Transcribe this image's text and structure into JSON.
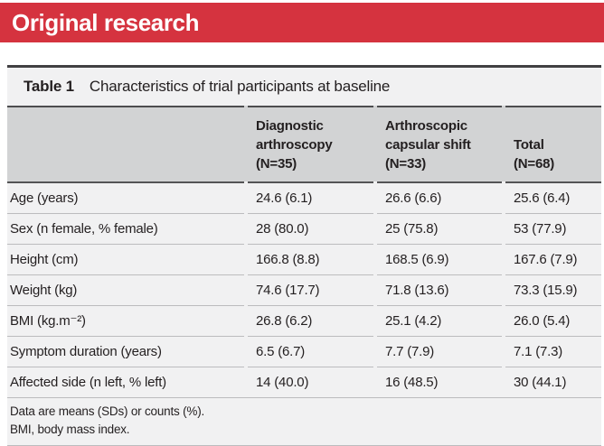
{
  "banner": {
    "title": "Original research",
    "background_color": "#d5333f"
  },
  "table": {
    "title_label": "Table 1",
    "title_text": "Characteristics of trial participants at baseline",
    "columns": [
      "Diagnostic\narthroscopy\n(N=35)",
      "Arthroscopic\ncapsular shift\n(N=33)",
      "Total\n(N=68)"
    ],
    "rows": [
      {
        "label": "Age (years)",
        "values": [
          "24.6 (6.1)",
          "26.6 (6.6)",
          "25.6 (6.4)"
        ]
      },
      {
        "label": "Sex (n female, % female)",
        "values": [
          "28 (80.0)",
          "25 (75.8)",
          "53 (77.9)"
        ]
      },
      {
        "label": "Height (cm)",
        "values": [
          "166.8 (8.8)",
          "168.5 (6.9)",
          "167.6 (7.9)"
        ]
      },
      {
        "label": "Weight (kg)",
        "values": [
          "74.6 (17.7)",
          "71.8 (13.6)",
          "73.3 (15.9)"
        ]
      },
      {
        "label": "BMI (kg.m⁻²)",
        "values": [
          "26.8 (6.2)",
          "25.1 (4.2)",
          "26.0 (5.4)"
        ]
      },
      {
        "label": "Symptom duration (years)",
        "values": [
          "6.5 (6.7)",
          "7.7 (7.9)",
          "7.1 (7.3)"
        ]
      },
      {
        "label": "Affected side (n left, % left)",
        "values": [
          "14 (40.0)",
          "16 (48.5)",
          "30 (44.1)"
        ]
      }
    ],
    "footnotes": [
      "Data are means (SDs) or counts (%).",
      "BMI, body mass index."
    ]
  },
  "colors": {
    "banner_red": "#d5333f",
    "header_band_gray": "#d2d3d4",
    "row_background": "#f1f1f2",
    "dark_rule": "#414042",
    "row_separator": "#bcbcbe",
    "text": "#231f20"
  }
}
